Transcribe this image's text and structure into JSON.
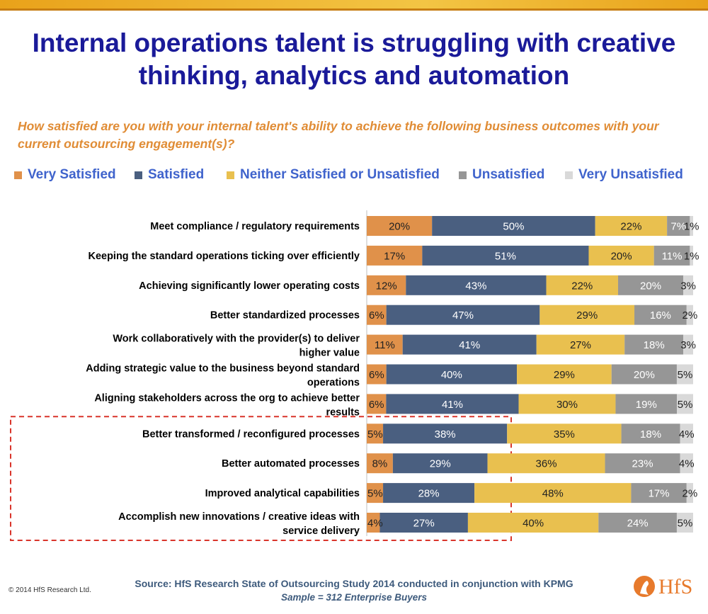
{
  "slide": {
    "title": "Internal operations talent is struggling with creative thinking, analytics and automation",
    "source": "Source: HfS Research State of Outsourcing Study 2014 conducted in conjunction with KPMG",
    "sample": "Sample = 312 Enterprise Buyers",
    "copyright": "© 2014 HfS Research Ltd.",
    "logo_text": "HfS",
    "colors": {
      "title": "#1a1a99",
      "subtitle": "#e08c35",
      "legend_text": "#3f63cc",
      "highlight_box": "#d9352b"
    }
  },
  "chart_data": {
    "type": "bar",
    "orientation": "horizontal",
    "stacked": true,
    "title": "How satisfied are you with your internal talent's ability to achieve the following business outcomes with your current outsourcing engagement(s)?",
    "legend_placement": "top",
    "categories": [
      "Meet compliance / regulatory requirements",
      "Keeping the standard operations ticking over efficiently",
      "Achieving significantly lower operating costs",
      "Better standardized processes",
      "Work collaboratively with the provider(s) to deliver higher value",
      "Adding strategic value to the business beyond standard operations",
      "Aligning stakeholders across the org to achieve better results",
      "Better transformed / reconfigured processes",
      "Better automated processes",
      "Improved analytical capabilities",
      "Accomplish new innovations / creative ideas with service delivery"
    ],
    "series": [
      {
        "name": "Very Satisfied",
        "color": "#e0914a",
        "label_color": "#222222",
        "values": [
          20,
          17,
          12,
          6,
          11,
          6,
          6,
          5,
          8,
          5,
          4
        ]
      },
      {
        "name": "Satisfied",
        "color": "#4a5f80",
        "label_color": "#ffffff",
        "values": [
          50,
          51,
          43,
          47,
          41,
          40,
          41,
          38,
          29,
          28,
          27
        ]
      },
      {
        "name": "Neither Satisfied or Unsatisfied",
        "color": "#e9c04f",
        "label_color": "#222222",
        "values": [
          22,
          20,
          22,
          29,
          27,
          29,
          30,
          35,
          36,
          48,
          40
        ]
      },
      {
        "name": "Unsatisfied",
        "color": "#969696",
        "label_color": "#ffffff",
        "values": [
          7,
          11,
          20,
          16,
          18,
          20,
          19,
          18,
          23,
          17,
          24
        ]
      },
      {
        "name": "Very Unsatisfied",
        "color": "#d9d9d9",
        "label_color": "#222222",
        "values": [
          1,
          1,
          3,
          2,
          3,
          5,
          5,
          4,
          4,
          2,
          5
        ]
      }
    ],
    "value_suffix": "%",
    "highlighted_categories": [
      7,
      8,
      9,
      10
    ]
  }
}
